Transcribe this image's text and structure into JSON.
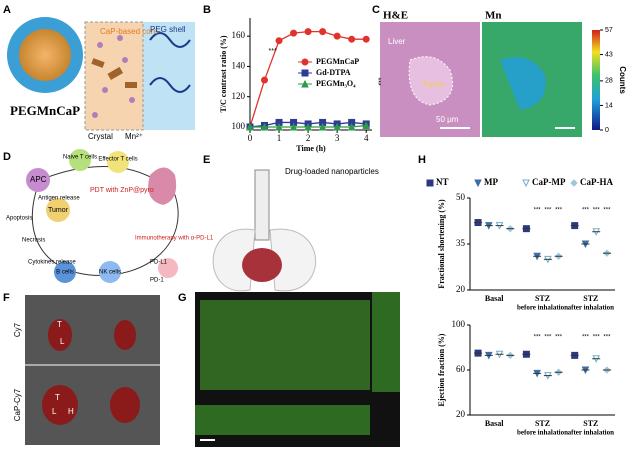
{
  "figure": {
    "panels": [
      "A",
      "B",
      "C",
      "D",
      "E",
      "F",
      "G",
      "H"
    ],
    "a": {
      "name": "PEGMnCaP",
      "core": "CaP-based core",
      "shell": "PEG shell",
      "crystal": "Crystal",
      "ion": "Mn²⁺"
    },
    "c": {
      "he": "H&E",
      "mn": "Mn",
      "liver": "Liver",
      "tumor": "Tumor",
      "scale": "50 μm",
      "colorbar": {
        "label": "Counts",
        "ticks": [
          0,
          14,
          28,
          43,
          57
        ]
      }
    },
    "d": {
      "apc": "APC",
      "naive": "Naive T cells",
      "effector": "Effector T cells",
      "antigen": "Antigen release",
      "pdt": "PDT with ZnP@pyro",
      "tumor": "Tumor",
      "apoptosis": "Apoptosis",
      "necrosis": "Necrosis",
      "cytokines": "Cytokines release",
      "bcells": "B cells",
      "nk": "NK cells",
      "immuno": "Immunotherapy with α-PD-L1",
      "pd1": "PD-1",
      "pdl1": "PD-L1"
    },
    "e": {
      "label": "Drug-loaded nanoparticles"
    },
    "f": {
      "cy7": "Cy7",
      "capcy7": "CaP-Cy7",
      "organs": [
        "T",
        "L",
        "H"
      ]
    }
  },
  "chart_data": [
    {
      "type": "line",
      "x_label": "Time (h)",
      "y_label": "T/C contrast ratio (%)",
      "x": [
        0,
        0.5,
        1,
        1.5,
        2,
        2.5,
        3,
        3.5,
        4
      ],
      "series": [
        {
          "name": "PEGMnCaP",
          "color": "#e0332b",
          "marker": "circle",
          "values": [
            100,
            131,
            157,
            162,
            163,
            163,
            160,
            158,
            158
          ]
        },
        {
          "name": "Gd-DTPA",
          "color": "#2f3b96",
          "marker": "square",
          "values": [
            100,
            101,
            103,
            103,
            102,
            103,
            102,
            103,
            102
          ]
        },
        {
          "name": "PEGMn₃O₄",
          "color": "#2e9a48",
          "marker": "triangle",
          "values": [
            100,
            100,
            100,
            100,
            100,
            100,
            100,
            100,
            101
          ]
        }
      ],
      "xlim": [
        0,
        4.2
      ],
      "xticks": [
        0,
        1,
        2,
        3,
        4
      ],
      "ylim": [
        98,
        172
      ],
      "yticks": [
        100,
        120,
        140,
        160
      ],
      "significance": "***"
    },
    {
      "type": "scatter",
      "y_label": "Fractional shortening (%)",
      "categories": [
        "Basal",
        "STZ",
        "STZ"
      ],
      "sublabels": [
        null,
        "before inhalation",
        "after inhalation"
      ],
      "series": [
        {
          "name": "NT",
          "color": "#2b3a80",
          "marker": "square",
          "values": [
            42,
            40,
            41
          ]
        },
        {
          "name": "MP",
          "color": "#3a6ea5",
          "marker": "tri",
          "values": [
            41,
            31,
            35
          ]
        },
        {
          "name": "CaP-MP",
          "color": "#6bb0c8",
          "marker": "tri-open",
          "values": [
            41,
            30,
            39
          ]
        },
        {
          "name": "CaP-HA",
          "color": "#9cc7db",
          "marker": "diamond",
          "values": [
            40,
            31,
            32
          ]
        }
      ],
      "ylim": [
        20,
        50
      ],
      "yticks": [
        20,
        35,
        50
      ],
      "significance": "***"
    },
    {
      "type": "scatter",
      "y_label": "Ejection fraction (%)",
      "categories": [
        "Basal",
        "STZ",
        "STZ"
      ],
      "sublabels": [
        null,
        "before inhalation",
        "after inhalation"
      ],
      "series": [
        {
          "name": "NT",
          "color": "#2b3a80",
          "marker": "square",
          "values": [
            75,
            74,
            73
          ]
        },
        {
          "name": "MP",
          "color": "#3a6ea5",
          "marker": "tri",
          "values": [
            73,
            57,
            60
          ]
        },
        {
          "name": "CaP-MP",
          "color": "#6bb0c8",
          "marker": "tri-open",
          "values": [
            74,
            55,
            70
          ]
        },
        {
          "name": "CaP-HA",
          "color": "#9cc7db",
          "marker": "diamond",
          "values": [
            73,
            58,
            60
          ]
        }
      ],
      "ylim": [
        20,
        100
      ],
      "yticks": [
        20,
        60,
        100
      ],
      "significance": "***"
    }
  ]
}
